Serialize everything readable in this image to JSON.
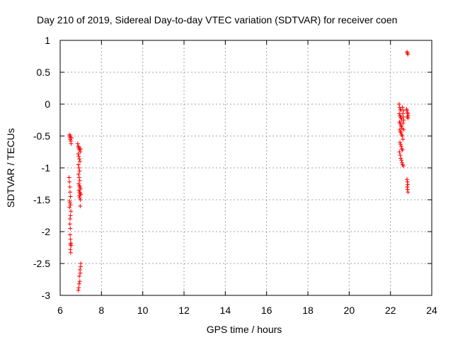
{
  "chart_data": {
    "type": "scatter",
    "title": "Day 210 of 2019, Sidereal Day-to-day VTEC variation (SDTVAR) for receiver coen",
    "xlabel": "GPS time / hours",
    "ylabel": "SDTVAR / TECUs",
    "xlim": [
      6,
      24
    ],
    "ylim": [
      -3,
      1
    ],
    "xticks": [
      "6",
      "8",
      "10",
      "12",
      "14",
      "16",
      "18",
      "20",
      "22",
      "24"
    ],
    "yticks": [
      "1",
      "0.5",
      "0",
      "-0.5",
      "-1",
      "-1.5",
      "-2",
      "-2.5",
      "-3"
    ],
    "grid": true,
    "marker": "+",
    "marker_color": "#ff0000",
    "points": [
      [
        6.45,
        -0.48
      ],
      [
        6.47,
        -0.52
      ],
      [
        6.48,
        -0.55
      ],
      [
        6.5,
        -0.5
      ],
      [
        6.52,
        -0.58
      ],
      [
        6.53,
        -0.62
      ],
      [
        6.55,
        -0.53
      ],
      [
        6.43,
        -1.15
      ],
      [
        6.45,
        -1.22
      ],
      [
        6.47,
        -1.3
      ],
      [
        6.48,
        -1.38
      ],
      [
        6.5,
        -1.45
      ],
      [
        6.46,
        -1.52
      ],
      [
        6.48,
        -1.55
      ],
      [
        6.5,
        -1.58
      ],
      [
        6.45,
        -1.62
      ],
      [
        6.52,
        -1.68
      ],
      [
        6.5,
        -1.75
      ],
      [
        6.48,
        -1.8
      ],
      [
        6.47,
        -1.88
      ],
      [
        6.49,
        -1.95
      ],
      [
        6.48,
        -2.05
      ],
      [
        6.5,
        -2.12
      ],
      [
        6.52,
        -2.18
      ],
      [
        6.5,
        -2.2
      ],
      [
        6.53,
        -2.22
      ],
      [
        6.49,
        -2.28
      ],
      [
        6.51,
        -2.33
      ],
      [
        6.85,
        -0.62
      ],
      [
        6.88,
        -0.66
      ],
      [
        6.9,
        -0.68
      ],
      [
        6.92,
        -0.7
      ],
      [
        6.95,
        -0.72
      ],
      [
        6.97,
        -0.75
      ],
      [
        6.99,
        -0.7
      ],
      [
        6.87,
        -0.78
      ],
      [
        6.9,
        -0.82
      ],
      [
        6.93,
        -0.86
      ],
      [
        6.96,
        -0.9
      ],
      [
        6.88,
        -0.95
      ],
      [
        6.91,
        -1.0
      ],
      [
        6.94,
        -1.05
      ],
      [
        6.89,
        -1.1
      ],
      [
        6.92,
        -1.15
      ],
      [
        6.95,
        -1.2
      ],
      [
        6.9,
        -1.25
      ],
      [
        6.93,
        -1.28
      ],
      [
        6.96,
        -1.3
      ],
      [
        6.99,
        -1.33
      ],
      [
        6.91,
        -1.35
      ],
      [
        6.94,
        -1.38
      ],
      [
        6.97,
        -1.4
      ],
      [
        7.0,
        -1.42
      ],
      [
        6.92,
        -1.44
      ],
      [
        6.95,
        -1.47
      ],
      [
        6.98,
        -1.5
      ],
      [
        6.97,
        -1.6
      ],
      [
        6.88,
        -2.92
      ],
      [
        6.9,
        -2.88
      ],
      [
        6.92,
        -2.82
      ],
      [
        6.95,
        -2.78
      ],
      [
        6.93,
        -2.7
      ],
      [
        6.97,
        -2.65
      ],
      [
        6.96,
        -2.6
      ],
      [
        6.99,
        -2.55
      ],
      [
        7.0,
        -2.5
      ],
      [
        22.42,
        0.0
      ],
      [
        22.45,
        -0.05
      ],
      [
        22.48,
        -0.08
      ],
      [
        22.5,
        -0.1
      ],
      [
        22.43,
        -0.15
      ],
      [
        22.46,
        -0.18
      ],
      [
        22.49,
        -0.2
      ],
      [
        22.52,
        -0.22
      ],
      [
        22.55,
        -0.25
      ],
      [
        22.44,
        -0.28
      ],
      [
        22.47,
        -0.3
      ],
      [
        22.5,
        -0.33
      ],
      [
        22.53,
        -0.35
      ],
      [
        22.56,
        -0.38
      ],
      [
        22.45,
        -0.4
      ],
      [
        22.48,
        -0.43
      ],
      [
        22.51,
        -0.45
      ],
      [
        22.54,
        -0.48
      ],
      [
        22.57,
        -0.5
      ],
      [
        22.6,
        -0.55
      ],
      [
        22.46,
        -0.6
      ],
      [
        22.49,
        -0.63
      ],
      [
        22.52,
        -0.66
      ],
      [
        22.55,
        -0.7
      ],
      [
        22.58,
        -0.72
      ],
      [
        22.44,
        -0.75
      ],
      [
        22.47,
        -0.8
      ],
      [
        22.5,
        -0.85
      ],
      [
        22.53,
        -0.88
      ],
      [
        22.56,
        -0.92
      ],
      [
        22.59,
        -0.95
      ],
      [
        22.62,
        -0.97
      ],
      [
        22.6,
        -0.15
      ],
      [
        22.62,
        -0.2
      ],
      [
        22.64,
        -0.25
      ],
      [
        22.63,
        -0.1
      ],
      [
        22.58,
        -0.05
      ],
      [
        22.61,
        -0.3
      ],
      [
        22.64,
        -0.4
      ],
      [
        22.8,
        0.82
      ],
      [
        22.82,
        0.8
      ],
      [
        22.84,
        0.78
      ],
      [
        22.78,
        -0.08
      ],
      [
        22.8,
        -0.1
      ],
      [
        22.82,
        -0.13
      ],
      [
        22.84,
        -0.15
      ],
      [
        22.86,
        -0.18
      ],
      [
        22.81,
        -0.2
      ],
      [
        22.85,
        -0.22
      ],
      [
        22.8,
        -1.18
      ],
      [
        22.82,
        -1.22
      ],
      [
        22.84,
        -1.26
      ],
      [
        22.81,
        -1.3
      ],
      [
        22.83,
        -1.34
      ],
      [
        22.85,
        -1.38
      ]
    ]
  }
}
